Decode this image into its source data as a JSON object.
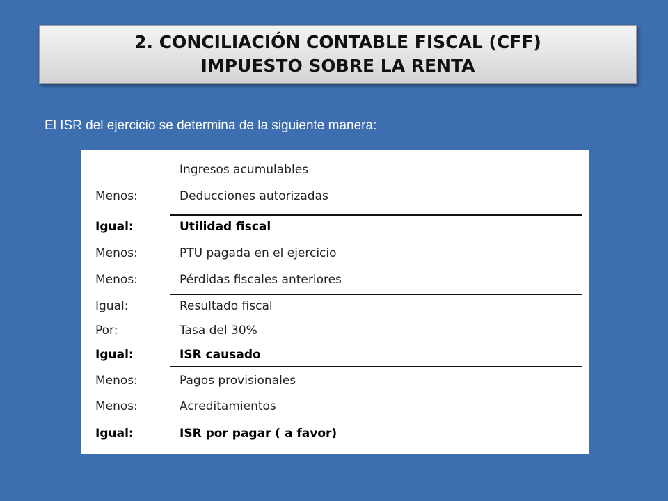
{
  "slide": {
    "title_line1": "2. CONCILIACIÓN CONTABLE FISCAL (CFF)",
    "title_line2": "IMPUESTO SOBRE LA RENTA",
    "intro": "El ISR del ejercicio se determina de la siguiente manera:"
  },
  "table": {
    "rows": [
      {
        "op": "",
        "item": "Ingresos acumulables"
      },
      {
        "op": "Menos:",
        "item": "Deducciones autorizadas"
      },
      {
        "op": "Igual:",
        "item": "Utilidad fiscal"
      },
      {
        "op": "Menos:",
        "item": "PTU pagada en el ejercicio"
      },
      {
        "op": "Menos:",
        "item": "Pérdidas fiscales anteriores"
      },
      {
        "op": "Igual:",
        "item": "Resultado fiscal"
      },
      {
        "op": "Por:",
        "item": "Tasa del 30%"
      },
      {
        "op": "Igual:",
        "item": "ISR causado"
      },
      {
        "op": "Menos:",
        "item": "Pagos provisionales"
      },
      {
        "op": "Menos:",
        "item": "Acreditamientos"
      },
      {
        "op": "Igual:",
        "item": "ISR por pagar ( a favor)"
      }
    ]
  }
}
